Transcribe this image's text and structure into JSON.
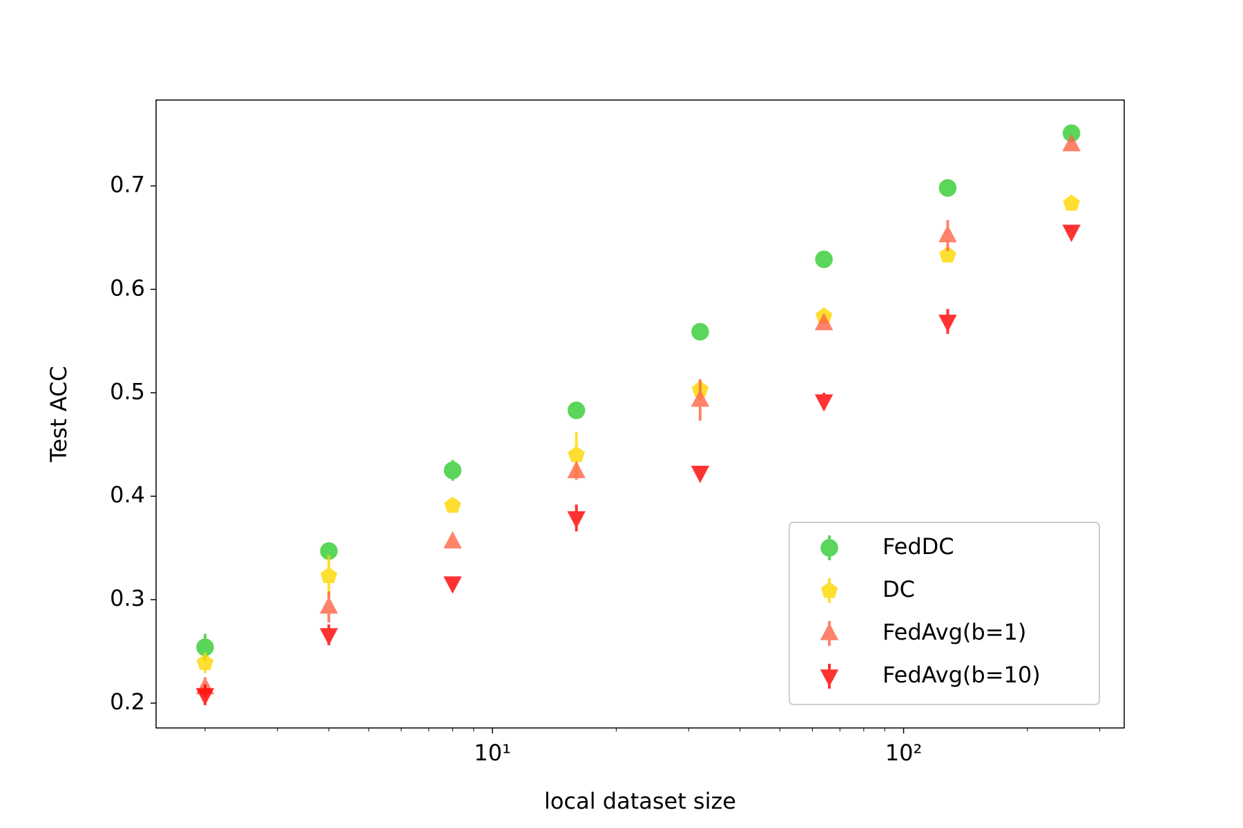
{
  "chart_data": {
    "type": "scatter",
    "x_label": "local dataset size",
    "y_label": "Test ACC",
    "x": [
      2,
      4,
      8,
      16,
      32,
      64,
      128,
      256
    ],
    "x_scale": "log",
    "xlim": [
      1.52,
      344
    ],
    "ylim": [
      0.176,
      0.783
    ],
    "xticks": [
      {
        "value": 10,
        "label": "10¹"
      },
      {
        "value": 100,
        "label": "10²"
      }
    ],
    "xminorticks": [
      2,
      3,
      4,
      5,
      6,
      7,
      8,
      9,
      20,
      30,
      40,
      50,
      60,
      70,
      80,
      90,
      200,
      300
    ],
    "yticks": [
      0.2,
      0.3,
      0.4,
      0.5,
      0.6,
      0.7
    ],
    "legend": "lower right",
    "series": [
      {
        "name": "FedDC",
        "color": "#32cd32",
        "marker": "circle",
        "values": [
          0.254,
          0.347,
          0.425,
          0.483,
          0.559,
          0.629,
          0.698,
          0.751
        ],
        "yerr": [
          0.013,
          0.003,
          0.01,
          0.003,
          0.003,
          0.002,
          0.002,
          0.002
        ]
      },
      {
        "name": "DC",
        "color": "#ffd700",
        "marker": "pentagon",
        "values": [
          0.239,
          0.323,
          0.391,
          0.44,
          0.503,
          0.574,
          0.633,
          0.683
        ],
        "yerr": [
          0.01,
          0.02,
          0.005,
          0.022,
          0.01,
          0.005,
          0.003,
          0.002
        ]
      },
      {
        "name": "FedAvg(b=1)",
        "color": "#ff6347",
        "marker": "triangle-up",
        "values": [
          0.215,
          0.293,
          0.356,
          0.424,
          0.493,
          0.567,
          0.652,
          0.74
        ],
        "yerr": [
          0.01,
          0.015,
          0.005,
          0.008,
          0.02,
          0.005,
          0.015,
          0.003
        ]
      },
      {
        "name": "FedAvg(b=10)",
        "color": "#ff0000",
        "marker": "triangle-down",
        "values": [
          0.208,
          0.266,
          0.316,
          0.379,
          0.423,
          0.492,
          0.569,
          0.656
        ],
        "yerr": [
          0.01,
          0.01,
          0.005,
          0.013,
          0.005,
          0.008,
          0.012,
          0.005
        ]
      }
    ]
  }
}
